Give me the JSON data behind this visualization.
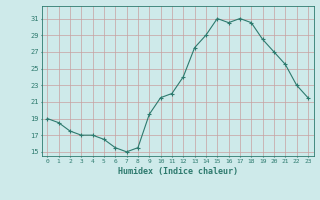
{
  "x": [
    0,
    1,
    2,
    3,
    4,
    5,
    6,
    7,
    8,
    9,
    10,
    11,
    12,
    13,
    14,
    15,
    16,
    17,
    18,
    19,
    20,
    21,
    22,
    23
  ],
  "y": [
    19,
    18.5,
    17.5,
    17,
    17,
    16.5,
    15.5,
    15,
    15.5,
    19.5,
    21.5,
    22,
    24,
    27.5,
    29,
    31,
    30.5,
    31,
    30.5,
    28.5,
    27,
    25.5,
    23,
    21.5
  ],
  "xlabel": "Humidex (Indice chaleur)",
  "xlim": [
    -0.5,
    23.5
  ],
  "ylim": [
    14.5,
    32.5
  ],
  "yticks": [
    15,
    17,
    19,
    21,
    23,
    25,
    27,
    29,
    31
  ],
  "xtick_labels": [
    "0",
    "1",
    "2",
    "3",
    "4",
    "5",
    "6",
    "7",
    "8",
    "9",
    "10",
    "11",
    "12",
    "13",
    "14",
    "15",
    "16",
    "17",
    "18",
    "19",
    "20",
    "21",
    "22",
    "23"
  ],
  "line_color": "#2d7a6e",
  "marker": "+",
  "bg_color": "#ceeaea",
  "grid_color": "#c8a0a0",
  "tick_color": "#2d7a6e",
  "label_color": "#2d7a6e"
}
